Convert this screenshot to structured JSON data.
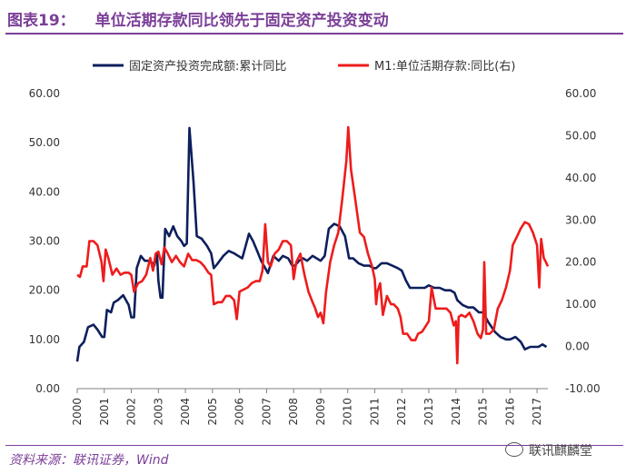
{
  "header": {
    "figure_number": "图表19：",
    "title": "单位活期存款同比领先于固定资产投资变动"
  },
  "footer": {
    "source": "资料来源：联讯证券，Wind",
    "watermark": "联讯麒麟堂"
  },
  "colors": {
    "series1": "#0d1f5c",
    "series2": "#ee1c1c",
    "accent": "#7b3f98"
  },
  "chart_data": {
    "type": "line",
    "title": "",
    "xlabel": "",
    "ylabel": "",
    "y2label": "",
    "legend_position": "top",
    "grid": false,
    "x_range": [
      2000.0,
      2017.4
    ],
    "xticks": [
      "2000",
      "2001",
      "2002",
      "2003",
      "2004",
      "2005",
      "2006",
      "2007",
      "2008",
      "2009",
      "2010",
      "2011",
      "2012",
      "2013",
      "2014",
      "2015",
      "2016",
      "2017"
    ],
    "ylim_left": [
      0,
      60
    ],
    "yticks_left": [
      "0.00",
      "10.00",
      "20.00",
      "30.00",
      "40.00",
      "50.00",
      "60.00"
    ],
    "ylim_right": [
      -10,
      60
    ],
    "yticks_right": [
      "-10.00",
      "0.00",
      "10.00",
      "20.00",
      "30.00",
      "40.00",
      "50.00",
      "60.00"
    ],
    "series": [
      {
        "name": "固定资产投资完成额:累计同比",
        "axis": "left",
        "points": [
          [
            2000.0,
            5.5
          ],
          [
            2000.08,
            8.5
          ],
          [
            2000.25,
            9.5
          ],
          [
            2000.4,
            12.5
          ],
          [
            2000.6,
            13
          ],
          [
            2000.75,
            12
          ],
          [
            2000.92,
            10.5
          ],
          [
            2001.0,
            10.5
          ],
          [
            2001.1,
            16
          ],
          [
            2001.25,
            15.5
          ],
          [
            2001.35,
            17.5
          ],
          [
            2001.5,
            18
          ],
          [
            2001.7,
            19
          ],
          [
            2001.9,
            17
          ],
          [
            2002.0,
            14.5
          ],
          [
            2002.1,
            14.5
          ],
          [
            2002.2,
            24.5
          ],
          [
            2002.35,
            27
          ],
          [
            2002.5,
            26
          ],
          [
            2002.7,
            26
          ],
          [
            2002.85,
            25
          ],
          [
            2002.95,
            27.5
          ],
          [
            2003.0,
            22
          ],
          [
            2003.08,
            18.5
          ],
          [
            2003.15,
            18.5
          ],
          [
            2003.25,
            32.5
          ],
          [
            2003.4,
            31
          ],
          [
            2003.55,
            33
          ],
          [
            2003.7,
            31
          ],
          [
            2003.85,
            30
          ],
          [
            2003.95,
            29
          ],
          [
            2004.05,
            29.5
          ],
          [
            2004.15,
            53
          ],
          [
            2004.3,
            42
          ],
          [
            2004.42,
            31
          ],
          [
            2004.6,
            30.5
          ],
          [
            2004.8,
            29
          ],
          [
            2004.95,
            27.5
          ],
          [
            2005.05,
            24.5
          ],
          [
            2005.2,
            25.5
          ],
          [
            2005.4,
            27
          ],
          [
            2005.6,
            28
          ],
          [
            2005.8,
            27.5
          ],
          [
            2005.95,
            27
          ],
          [
            2006.1,
            26.5
          ],
          [
            2006.25,
            29.5
          ],
          [
            2006.35,
            31.5
          ],
          [
            2006.5,
            30
          ],
          [
            2006.65,
            28
          ],
          [
            2006.8,
            26
          ],
          [
            2006.95,
            24.5
          ],
          [
            2007.05,
            23.5
          ],
          [
            2007.25,
            27
          ],
          [
            2007.45,
            26
          ],
          [
            2007.6,
            27
          ],
          [
            2007.8,
            26.5
          ],
          [
            2007.95,
            25
          ],
          [
            2008.05,
            25
          ],
          [
            2008.2,
            26
          ],
          [
            2008.35,
            26.5
          ],
          [
            2008.5,
            26
          ],
          [
            2008.7,
            27
          ],
          [
            2008.85,
            26.5
          ],
          [
            2009.0,
            26
          ],
          [
            2009.15,
            27
          ],
          [
            2009.3,
            32.5
          ],
          [
            2009.5,
            33.5
          ],
          [
            2009.7,
            33
          ],
          [
            2009.9,
            31
          ],
          [
            2010.05,
            26.5
          ],
          [
            2010.2,
            26.5
          ],
          [
            2010.4,
            25.5
          ],
          [
            2010.6,
            25
          ],
          [
            2010.8,
            25
          ],
          [
            2010.95,
            24.5
          ],
          [
            2011.05,
            24.5
          ],
          [
            2011.25,
            25.5
          ],
          [
            2011.45,
            25.5
          ],
          [
            2011.65,
            25
          ],
          [
            2011.85,
            24.5
          ],
          [
            2012.0,
            24
          ],
          [
            2012.15,
            22
          ],
          [
            2012.3,
            20.5
          ],
          [
            2012.5,
            20.5
          ],
          [
            2012.7,
            20.5
          ],
          [
            2012.85,
            20.5
          ],
          [
            2013.0,
            21
          ],
          [
            2013.2,
            20.5
          ],
          [
            2013.4,
            20.5
          ],
          [
            2013.6,
            20
          ],
          [
            2013.8,
            20
          ],
          [
            2013.95,
            19.5
          ],
          [
            2014.05,
            18
          ],
          [
            2014.25,
            17
          ],
          [
            2014.45,
            16.5
          ],
          [
            2014.65,
            16.5
          ],
          [
            2014.85,
            15.5
          ],
          [
            2015.0,
            15.5
          ],
          [
            2015.2,
            13.5
          ],
          [
            2015.45,
            11.5
          ],
          [
            2015.65,
            10.5
          ],
          [
            2015.85,
            10
          ],
          [
            2016.0,
            10
          ],
          [
            2016.2,
            10.5
          ],
          [
            2016.4,
            9.5
          ],
          [
            2016.55,
            8
          ],
          [
            2016.75,
            8.5
          ],
          [
            2016.95,
            8.5
          ],
          [
            2017.05,
            8.5
          ],
          [
            2017.2,
            9
          ],
          [
            2017.35,
            8.5
          ]
        ]
      },
      {
        "name": "M1:单位活期存款:同比(右)",
        "axis": "right",
        "points": [
          [
            2000.0,
            17
          ],
          [
            2000.1,
            16.5
          ],
          [
            2000.2,
            19
          ],
          [
            2000.35,
            19
          ],
          [
            2000.45,
            25
          ],
          [
            2000.6,
            25
          ],
          [
            2000.75,
            24
          ],
          [
            2000.9,
            20
          ],
          [
            2000.97,
            15.5
          ],
          [
            2001.05,
            23
          ],
          [
            2001.15,
            21
          ],
          [
            2001.3,
            17
          ],
          [
            2001.45,
            18.5
          ],
          [
            2001.6,
            17
          ],
          [
            2001.75,
            17.5
          ],
          [
            2001.9,
            17.5
          ],
          [
            2002.0,
            17
          ],
          [
            2002.1,
            13
          ],
          [
            2002.25,
            15
          ],
          [
            2002.4,
            15.5
          ],
          [
            2002.55,
            17
          ],
          [
            2002.7,
            21
          ],
          [
            2002.8,
            18
          ],
          [
            2002.9,
            22
          ],
          [
            2003.0,
            22.5
          ],
          [
            2003.12,
            19.5
          ],
          [
            2003.22,
            23.5
          ],
          [
            2003.35,
            22
          ],
          [
            2003.5,
            20
          ],
          [
            2003.65,
            21.5
          ],
          [
            2003.8,
            20
          ],
          [
            2003.95,
            19
          ],
          [
            2004.1,
            22
          ],
          [
            2004.25,
            20.5
          ],
          [
            2004.4,
            20.5
          ],
          [
            2004.55,
            20
          ],
          [
            2004.7,
            19
          ],
          [
            2004.85,
            17.5
          ],
          [
            2004.95,
            17
          ],
          [
            2005.05,
            10
          ],
          [
            2005.2,
            10.5
          ],
          [
            2005.35,
            10.5
          ],
          [
            2005.5,
            12
          ],
          [
            2005.65,
            12
          ],
          [
            2005.8,
            11
          ],
          [
            2005.9,
            6.5
          ],
          [
            2006.0,
            13
          ],
          [
            2006.15,
            13.5
          ],
          [
            2006.3,
            14
          ],
          [
            2006.45,
            15
          ],
          [
            2006.6,
            15.5
          ],
          [
            2006.75,
            15.5
          ],
          [
            2006.85,
            18
          ],
          [
            2006.95,
            29
          ],
          [
            2007.05,
            20
          ],
          [
            2007.15,
            19
          ],
          [
            2007.3,
            22
          ],
          [
            2007.45,
            23
          ],
          [
            2007.6,
            25
          ],
          [
            2007.75,
            25
          ],
          [
            2007.9,
            24
          ],
          [
            2008.0,
            16
          ],
          [
            2008.1,
            20
          ],
          [
            2008.25,
            22
          ],
          [
            2008.4,
            17
          ],
          [
            2008.55,
            13
          ],
          [
            2008.7,
            10.5
          ],
          [
            2008.8,
            9
          ],
          [
            2008.9,
            7
          ],
          [
            2009.0,
            8
          ],
          [
            2009.1,
            5.5
          ],
          [
            2009.2,
            13
          ],
          [
            2009.35,
            20
          ],
          [
            2009.5,
            24
          ],
          [
            2009.65,
            27
          ],
          [
            2009.8,
            35
          ],
          [
            2009.95,
            44
          ],
          [
            2010.02,
            52
          ],
          [
            2010.12,
            42
          ],
          [
            2010.3,
            34
          ],
          [
            2010.45,
            27
          ],
          [
            2010.6,
            26
          ],
          [
            2010.75,
            22
          ],
          [
            2010.9,
            19
          ],
          [
            2011.0,
            16
          ],
          [
            2011.05,
            10
          ],
          [
            2011.1,
            13
          ],
          [
            2011.2,
            15
          ],
          [
            2011.3,
            7.5
          ],
          [
            2011.45,
            12
          ],
          [
            2011.6,
            10
          ],
          [
            2011.7,
            10
          ],
          [
            2011.85,
            9
          ],
          [
            2011.95,
            7
          ],
          [
            2012.05,
            3
          ],
          [
            2012.2,
            3
          ],
          [
            2012.35,
            1.5
          ],
          [
            2012.5,
            1.5
          ],
          [
            2012.6,
            3
          ],
          [
            2012.75,
            3.5
          ],
          [
            2012.9,
            5
          ],
          [
            2013.0,
            6
          ],
          [
            2013.1,
            14
          ],
          [
            2013.25,
            9
          ],
          [
            2013.35,
            9
          ],
          [
            2013.5,
            9
          ],
          [
            2013.65,
            9
          ],
          [
            2013.8,
            8
          ],
          [
            2013.92,
            5
          ],
          [
            2014.0,
            6
          ],
          [
            2014.05,
            -4
          ],
          [
            2014.1,
            7
          ],
          [
            2014.2,
            7.5
          ],
          [
            2014.35,
            7
          ],
          [
            2014.5,
            8
          ],
          [
            2014.65,
            6
          ],
          [
            2014.8,
            3
          ],
          [
            2014.92,
            2
          ],
          [
            2015.0,
            4
          ],
          [
            2015.05,
            20
          ],
          [
            2015.12,
            3
          ],
          [
            2015.25,
            3
          ],
          [
            2015.4,
            4
          ],
          [
            2015.55,
            9
          ],
          [
            2015.7,
            11
          ],
          [
            2015.85,
            14
          ],
          [
            2016.0,
            18
          ],
          [
            2016.1,
            24
          ],
          [
            2016.25,
            26
          ],
          [
            2016.4,
            28
          ],
          [
            2016.55,
            29.5
          ],
          [
            2016.7,
            29
          ],
          [
            2016.85,
            27
          ],
          [
            2017.0,
            24
          ],
          [
            2017.08,
            14
          ],
          [
            2017.15,
            25.5
          ],
          [
            2017.25,
            21
          ],
          [
            2017.33,
            20
          ],
          [
            2017.4,
            19
          ]
        ]
      }
    ]
  }
}
